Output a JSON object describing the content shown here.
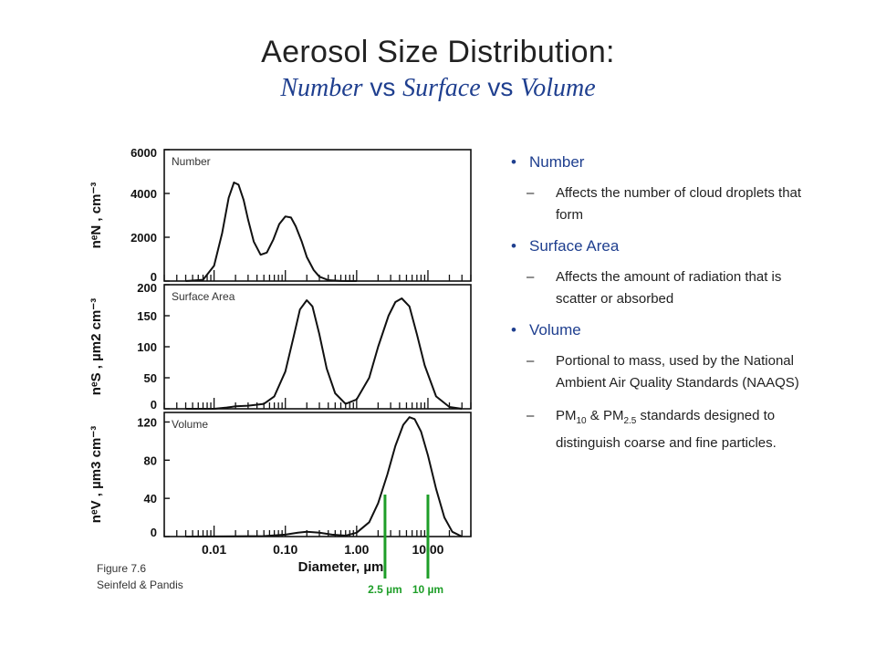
{
  "title": "Aerosol Size Distribution:",
  "subtitle": {
    "number": "Number",
    "vs1": " vs ",
    "surface": "Surface",
    "vs2": " vs ",
    "volume": "Volume"
  },
  "caption": {
    "line1": "Figure 7.6",
    "line2": "Seinfeld & Pandis"
  },
  "bullets": [
    {
      "label": "Number",
      "sub": [
        "Affects the number of cloud droplets that form"
      ]
    },
    {
      "label": "Surface Area",
      "sub": [
        "Affects the amount of radiation that is scatter or absorbed"
      ]
    },
    {
      "label": "Volume",
      "sub": [
        "Portional to mass, used by the National Ambient Air Quality Standards (NAAQS)",
        {
          "pre": "PM",
          "s1": "10",
          "mid": " & PM",
          "s2": "2.5",
          "post": " standards designed to distinguish coarse and fine particles."
        }
      ]
    }
  ],
  "colors": {
    "accent": "#1f3f8f",
    "marker": "#1e9e28",
    "plot": "#111111"
  },
  "chart_data": {
    "type": "line",
    "xlabel": "Diameter,  µm",
    "x_scale": "log",
    "x_ticks": [
      "0.01",
      "0.10",
      "1.00",
      "10.00"
    ],
    "x_ticks_values": [
      0.01,
      0.1,
      1,
      10
    ],
    "xlim": [
      0.002,
      40
    ],
    "panels": [
      {
        "label": "Number",
        "ylabel": "nᵉN , cm⁻³",
        "ylim": [
          0,
          6000
        ],
        "yticks": [
          "0",
          "2000",
          "4000",
          "6000"
        ],
        "yticks_values": [
          0,
          2000,
          4000,
          6000
        ],
        "x": [
          0.004,
          0.007,
          0.01,
          0.013,
          0.016,
          0.019,
          0.022,
          0.026,
          0.03,
          0.036,
          0.045,
          0.055,
          0.068,
          0.082,
          0.1,
          0.12,
          0.14,
          0.17,
          0.2,
          0.25,
          0.3,
          0.4,
          0.6,
          1.0
        ],
        "y": [
          0,
          60,
          700,
          2200,
          3800,
          4500,
          4400,
          3700,
          2800,
          1800,
          1200,
          1300,
          1900,
          2600,
          2950,
          2900,
          2500,
          1800,
          1100,
          500,
          200,
          40,
          5,
          0
        ]
      },
      {
        "label": "Surface Area",
        "ylabel": "nᵉS , µm2 cm⁻³",
        "ylim": [
          0,
          200
        ],
        "yticks": [
          "0",
          "50",
          "100",
          "150",
          "200"
        ],
        "yticks_values": [
          0,
          50,
          100,
          150,
          200
        ],
        "x": [
          0.004,
          0.01,
          0.015,
          0.02,
          0.03,
          0.05,
          0.07,
          0.1,
          0.13,
          0.16,
          0.2,
          0.24,
          0.3,
          0.38,
          0.5,
          0.7,
          1.0,
          1.5,
          2.0,
          2.8,
          3.5,
          4.3,
          5.5,
          7.0,
          9.0,
          13,
          20,
          30
        ],
        "y": [
          0,
          0,
          2,
          4,
          5,
          8,
          20,
          60,
          115,
          160,
          175,
          165,
          120,
          65,
          25,
          8,
          15,
          50,
          100,
          150,
          172,
          178,
          165,
          120,
          70,
          20,
          3,
          0
        ]
      },
      {
        "label": "Volume",
        "ylabel": "nᵉV ,  µm3 cm⁻³",
        "ylim": [
          0,
          130
        ],
        "yticks": [
          "0",
          "40",
          "80",
          "120"
        ],
        "yticks_values": [
          0,
          40,
          80,
          120
        ],
        "x": [
          0.004,
          0.05,
          0.1,
          0.15,
          0.2,
          0.3,
          0.45,
          0.7,
          1.0,
          1.5,
          2.0,
          2.7,
          3.5,
          4.5,
          5.5,
          6.5,
          8.0,
          10.0,
          13.0,
          17.0,
          22.0,
          30.0
        ],
        "y": [
          0,
          0.5,
          2,
          4,
          5,
          4,
          2,
          1,
          4,
          15,
          35,
          65,
          95,
          117,
          125,
          123,
          110,
          85,
          50,
          20,
          5,
          0
        ]
      }
    ],
    "markers": [
      {
        "x": 2.5,
        "label": "2.5 µm"
      },
      {
        "x": 10,
        "label": "10 µm"
      }
    ]
  }
}
